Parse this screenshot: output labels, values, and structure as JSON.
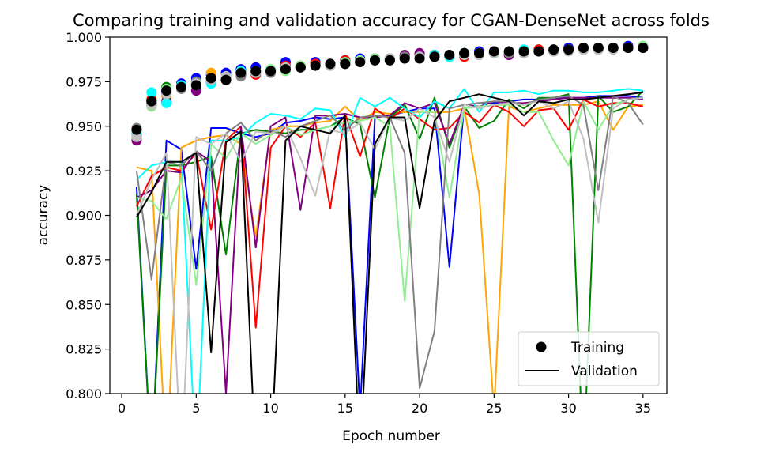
{
  "chart_data": {
    "type": "line",
    "title": "Comparing training and validation accuracy for CGAN-DenseNet across folds",
    "xlabel": "Epoch number",
    "ylabel": "accuracy",
    "xlim": [
      -0.8,
      36.6
    ],
    "ylim": [
      0.8,
      1.0
    ],
    "xticks": [
      0,
      5,
      10,
      15,
      20,
      25,
      30,
      35
    ],
    "yticks": [
      0.8,
      0.825,
      0.85,
      0.875,
      0.9,
      0.925,
      0.95,
      0.975,
      1.0
    ],
    "xtick_labels": [
      "0",
      "5",
      "10",
      "15",
      "20",
      "25",
      "30",
      "35"
    ],
    "ytick_labels": [
      "0.800",
      "0.825",
      "0.850",
      "0.875",
      "0.900",
      "0.925",
      "0.950",
      "0.975",
      "1.000"
    ],
    "grid": false,
    "legend": {
      "placement": "bottom-right",
      "entries": [
        {
          "label": "Training",
          "marker": "dot",
          "color": "#000000"
        },
        {
          "label": "Validation",
          "marker": "line",
          "color": "#000000"
        }
      ]
    },
    "x": [
      1,
      2,
      3,
      4,
      5,
      6,
      7,
      8,
      9,
      10,
      11,
      12,
      13,
      14,
      15,
      16,
      17,
      18,
      19,
      20,
      21,
      22,
      23,
      24,
      25,
      26,
      27,
      28,
      29,
      30,
      31,
      32,
      33,
      34,
      35
    ],
    "series": [
      {
        "color": "#0000ff",
        "training": [
          0.945,
          0.963,
          0.969,
          0.974,
          0.977,
          0.979,
          0.98,
          0.982,
          0.983,
          0.981,
          0.986,
          0.984,
          0.986,
          0.985,
          0.987,
          0.988,
          0.988,
          0.987,
          0.989,
          0.99,
          0.989,
          0.99,
          0.99,
          0.992,
          0.992,
          0.991,
          0.992,
          0.992,
          0.993,
          0.994,
          0.993,
          0.994,
          0.994,
          0.995,
          0.995
        ],
        "validation": [
          0.916,
          0.76,
          0.942,
          0.937,
          0.87,
          0.949,
          0.949,
          0.946,
          0.944,
          0.946,
          0.952,
          0.953,
          0.955,
          0.954,
          0.955,
          0.79,
          0.955,
          0.956,
          0.958,
          0.96,
          0.96,
          0.871,
          0.962,
          0.963,
          0.963,
          0.964,
          0.965,
          0.965,
          0.966,
          0.966,
          0.966,
          0.967,
          0.967,
          0.967,
          0.966
        ]
      },
      {
        "color": "#ffa500",
        "training": [
          0.944,
          0.965,
          0.967,
          0.972,
          0.973,
          0.98,
          0.978,
          0.979,
          0.98,
          0.981,
          0.983,
          0.984,
          0.985,
          0.985,
          0.986,
          0.986,
          0.987,
          0.988,
          0.988,
          0.989,
          0.99,
          0.99,
          0.991,
          0.991,
          0.992,
          0.991,
          0.992,
          0.993,
          0.993,
          0.993,
          0.994,
          0.994,
          0.994,
          0.994,
          0.995
        ],
        "validation": [
          0.927,
          0.925,
          0.76,
          0.938,
          0.942,
          0.944,
          0.945,
          0.94,
          0.888,
          0.948,
          0.95,
          0.95,
          0.952,
          0.953,
          0.961,
          0.953,
          0.958,
          0.957,
          0.958,
          0.958,
          0.958,
          0.958,
          0.96,
          0.912,
          0.79,
          0.961,
          0.958,
          0.96,
          0.962,
          0.962,
          0.962,
          0.964,
          0.948,
          0.961,
          0.962
        ]
      },
      {
        "color": "#008000",
        "training": [
          0.943,
          0.962,
          0.972,
          0.973,
          0.975,
          0.977,
          0.978,
          0.98,
          0.981,
          0.981,
          0.982,
          0.983,
          0.985,
          0.984,
          0.985,
          0.986,
          0.988,
          0.987,
          0.989,
          0.989,
          0.99,
          0.989,
          0.991,
          0.991,
          0.991,
          0.991,
          0.992,
          0.993,
          0.992,
          0.993,
          0.994,
          0.994,
          0.994,
          0.994,
          0.994
        ],
        "validation": [
          0.912,
          0.76,
          0.928,
          0.928,
          0.93,
          0.933,
          0.878,
          0.946,
          0.948,
          0.947,
          0.946,
          0.948,
          0.948,
          0.95,
          0.955,
          0.951,
          0.91,
          0.955,
          0.962,
          0.943,
          0.966,
          0.938,
          0.961,
          0.949,
          0.953,
          0.965,
          0.96,
          0.966,
          0.966,
          0.968,
          0.76,
          0.967,
          0.958,
          0.961,
          0.97
        ]
      },
      {
        "color": "#ff0000",
        "training": [
          0.946,
          0.965,
          0.968,
          0.972,
          0.974,
          0.977,
          0.976,
          0.98,
          0.979,
          0.981,
          0.984,
          0.983,
          0.985,
          0.985,
          0.987,
          0.987,
          0.987,
          0.988,
          0.989,
          0.99,
          0.989,
          0.99,
          0.989,
          0.99,
          0.991,
          0.99,
          0.992,
          0.993,
          0.993,
          0.993,
          0.994,
          0.994,
          0.994,
          0.994,
          0.994
        ],
        "validation": [
          0.905,
          0.922,
          0.927,
          0.925,
          0.935,
          0.892,
          0.942,
          0.95,
          0.837,
          0.938,
          0.95,
          0.944,
          0.952,
          0.904,
          0.957,
          0.933,
          0.96,
          0.954,
          0.96,
          0.954,
          0.948,
          0.949,
          0.958,
          0.952,
          0.962,
          0.958,
          0.95,
          0.959,
          0.96,
          0.948,
          0.965,
          0.961,
          0.963,
          0.963,
          0.961
        ]
      },
      {
        "color": "#800080",
        "training": [
          0.942,
          0.964,
          0.964,
          0.973,
          0.97,
          0.975,
          0.977,
          0.979,
          0.98,
          0.981,
          0.982,
          0.983,
          0.984,
          0.984,
          0.986,
          0.987,
          0.987,
          0.988,
          0.99,
          0.991,
          0.99,
          0.99,
          0.99,
          0.991,
          0.991,
          0.99,
          0.991,
          0.992,
          0.992,
          0.993,
          0.993,
          0.993,
          0.994,
          0.994,
          0.994
        ],
        "validation": [
          0.91,
          0.914,
          0.925,
          0.924,
          0.936,
          0.93,
          0.8,
          0.95,
          0.882,
          0.95,
          0.955,
          0.903,
          0.956,
          0.956,
          0.957,
          0.955,
          0.955,
          0.956,
          0.963,
          0.96,
          0.963,
          0.94,
          0.962,
          0.961,
          0.964,
          0.963,
          0.963,
          0.964,
          0.965,
          0.966,
          0.966,
          0.966,
          0.966,
          0.966,
          0.965
        ]
      },
      {
        "color": "#00ffff",
        "training": [
          0.946,
          0.969,
          0.963,
          0.973,
          0.975,
          0.974,
          0.978,
          0.981,
          0.981,
          0.982,
          0.983,
          0.983,
          0.984,
          0.985,
          0.986,
          0.987,
          0.987,
          0.988,
          0.988,
          0.989,
          0.99,
          0.989,
          0.991,
          0.991,
          0.991,
          0.992,
          0.993,
          0.992,
          0.993,
          0.993,
          0.993,
          0.994,
          0.994,
          0.994,
          0.995
        ],
        "validation": [
          0.92,
          0.928,
          0.93,
          0.93,
          0.76,
          0.942,
          0.942,
          0.944,
          0.952,
          0.957,
          0.956,
          0.954,
          0.96,
          0.959,
          0.944,
          0.966,
          0.961,
          0.966,
          0.96,
          0.955,
          0.964,
          0.96,
          0.971,
          0.958,
          0.969,
          0.969,
          0.97,
          0.968,
          0.97,
          0.97,
          0.969,
          0.969,
          0.97,
          0.971,
          0.97
        ]
      },
      {
        "color": "#90ee90",
        "training": [
          0.944,
          0.961,
          0.971,
          0.972,
          0.973,
          0.976,
          0.978,
          0.98,
          0.98,
          0.982,
          0.981,
          0.984,
          0.984,
          0.985,
          0.986,
          0.987,
          0.988,
          0.987,
          0.988,
          0.989,
          0.989,
          0.99,
          0.99,
          0.991,
          0.991,
          0.991,
          0.992,
          0.992,
          0.992,
          0.993,
          0.993,
          0.993,
          0.994,
          0.994,
          0.995
        ],
        "validation": [
          0.91,
          0.908,
          0.898,
          0.921,
          0.861,
          0.94,
          0.932,
          0.946,
          0.94,
          0.945,
          0.95,
          0.945,
          0.948,
          0.95,
          0.952,
          0.953,
          0.955,
          0.95,
          0.852,
          0.958,
          0.958,
          0.91,
          0.96,
          0.961,
          0.962,
          0.962,
          0.958,
          0.958,
          0.942,
          0.928,
          0.964,
          0.948,
          0.962,
          0.965,
          0.966
        ]
      },
      {
        "color": "#808080",
        "training": [
          0.949,
          0.962,
          0.968,
          0.971,
          0.975,
          0.976,
          0.977,
          0.978,
          0.98,
          0.98,
          0.982,
          0.983,
          0.984,
          0.985,
          0.985,
          0.986,
          0.987,
          0.988,
          0.989,
          0.989,
          0.989,
          0.99,
          0.99,
          0.991,
          0.992,
          0.991,
          0.992,
          0.992,
          0.992,
          0.993,
          0.993,
          0.994,
          0.994,
          0.994,
          0.994
        ],
        "validation": [
          0.925,
          0.864,
          0.93,
          0.928,
          0.936,
          0.925,
          0.946,
          0.952,
          0.942,
          0.948,
          0.944,
          0.95,
          0.953,
          0.956,
          0.948,
          0.955,
          0.956,
          0.955,
          0.935,
          0.803,
          0.835,
          0.96,
          0.962,
          0.963,
          0.964,
          0.964,
          0.962,
          0.965,
          0.966,
          0.967,
          0.962,
          0.914,
          0.967,
          0.963,
          0.951
        ]
      },
      {
        "color": "#c0c0c0",
        "training": [
          0.944,
          0.962,
          0.968,
          0.972,
          0.974,
          0.976,
          0.978,
          0.98,
          0.98,
          0.981,
          0.983,
          0.983,
          0.984,
          0.984,
          0.985,
          0.986,
          0.987,
          0.988,
          0.988,
          0.989,
          0.989,
          0.99,
          0.99,
          0.99,
          0.991,
          0.992,
          0.991,
          0.992,
          0.992,
          0.992,
          0.993,
          0.993,
          0.993,
          0.994,
          0.994
        ],
        "validation": [
          0.9,
          0.92,
          0.935,
          0.76,
          0.944,
          0.94,
          0.946,
          0.93,
          0.947,
          0.946,
          0.95,
          0.932,
          0.911,
          0.948,
          0.946,
          0.952,
          0.937,
          0.955,
          0.953,
          0.96,
          0.955,
          0.93,
          0.962,
          0.96,
          0.962,
          0.963,
          0.962,
          0.964,
          0.96,
          0.964,
          0.943,
          0.896,
          0.96,
          0.965,
          0.966
        ]
      },
      {
        "color": "#000000",
        "training": [
          0.948,
          0.964,
          0.97,
          0.972,
          0.973,
          0.977,
          0.976,
          0.98,
          0.981,
          0.981,
          0.982,
          0.983,
          0.984,
          0.985,
          0.985,
          0.986,
          0.987,
          0.987,
          0.988,
          0.988,
          0.989,
          0.99,
          0.991,
          0.991,
          0.992,
          0.992,
          0.992,
          0.992,
          0.993,
          0.993,
          0.994,
          0.994,
          0.994,
          0.994,
          0.994
        ],
        "validation": [
          0.899,
          0.913,
          0.93,
          0.93,
          0.935,
          0.823,
          0.941,
          0.947,
          0.76,
          0.76,
          0.942,
          0.95,
          0.948,
          0.946,
          0.956,
          0.76,
          0.94,
          0.955,
          0.955,
          0.904,
          0.953,
          0.964,
          0.966,
          0.968,
          0.966,
          0.964,
          0.956,
          0.964,
          0.963,
          0.965,
          0.965,
          0.966,
          0.967,
          0.968,
          0.969
        ]
      }
    ]
  }
}
